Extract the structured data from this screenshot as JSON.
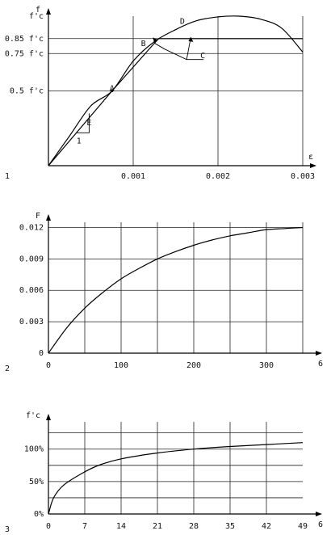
{
  "chart_data": [
    {
      "type": "line",
      "panel_number": "1",
      "ylabel": "f",
      "xlabel": "ε",
      "xlim": [
        0,
        0.003
      ],
      "ylim": [
        0,
        1.0
      ],
      "x_ticks": [
        {
          "value": 0.001,
          "label": "0.001"
        },
        {
          "value": 0.002,
          "label": "0.002"
        },
        {
          "value": 0.003,
          "label": "0.003"
        }
      ],
      "y_ticks": [
        {
          "value": 0.5,
          "label": "0.5  f'c"
        },
        {
          "value": 0.75,
          "label": "0.75  f'c"
        },
        {
          "value": 0.85,
          "label": "0.85  f'c"
        },
        {
          "value": 1.0,
          "label": "f'c"
        }
      ],
      "series": [
        {
          "style": "curve",
          "x": [
            0,
            0.00025,
            0.0005,
            0.00075,
            0.001,
            0.00125,
            0.0015,
            0.00175,
            0.002,
            0.00225,
            0.0025,
            0.00275,
            0.003
          ],
          "y": [
            0,
            0.2,
            0.4,
            0.5,
            0.7,
            0.83,
            0.91,
            0.97,
            0.995,
            1.0,
            0.98,
            0.92,
            0.76
          ]
        },
        {
          "style": "bilinear",
          "x": [
            0,
            0.00075,
            0.00122,
            0.0013,
            0.003
          ],
          "y": [
            0,
            0.5,
            0.8,
            0.85,
            0.85
          ]
        }
      ],
      "annotations": [
        {
          "text": "A",
          "x": 0.00075,
          "y": 0.5
        },
        {
          "text": "B",
          "x": 0.00112,
          "y": 0.8
        },
        {
          "text": "C",
          "x": 0.00182,
          "y": 0.72
        },
        {
          "text": "D",
          "x": 0.00158,
          "y": 0.95
        },
        {
          "text": "E",
          "x": 0.00048,
          "y": 0.27
        },
        {
          "text": "1",
          "x": 0.00036,
          "y": 0.15
        }
      ]
    },
    {
      "type": "line",
      "panel_number": "2",
      "ylabel": "F",
      "xlabel": "6",
      "xlim": [
        0,
        350
      ],
      "ylim": [
        0,
        0.0125
      ],
      "x_ticks": [
        {
          "value": 0,
          "label": "0"
        },
        {
          "value": 100,
          "label": "100"
        },
        {
          "value": 200,
          "label": "200"
        },
        {
          "value": 300,
          "label": "300"
        }
      ],
      "y_ticks": [
        {
          "value": 0,
          "label": "0"
        },
        {
          "value": 0.003,
          "label": "0.003"
        },
        {
          "value": 0.006,
          "label": "0.006"
        },
        {
          "value": 0.009,
          "label": "0.009"
        },
        {
          "value": 0.012,
          "label": "0.012"
        }
      ],
      "series": [
        {
          "x": [
            0,
            25,
            50,
            75,
            100,
            125,
            150,
            175,
            200,
            225,
            250,
            275,
            300,
            325,
            350
          ],
          "y": [
            0,
            0.0024,
            0.0043,
            0.0058,
            0.0071,
            0.0081,
            0.009,
            0.0097,
            0.0103,
            0.0108,
            0.0112,
            0.0115,
            0.0118,
            0.0119,
            0.012
          ]
        }
      ]
    },
    {
      "type": "line",
      "panel_number": "3",
      "ylabel": "f'c",
      "xlabel": "6",
      "xlim": [
        0,
        49
      ],
      "ylim": [
        0,
        1.42
      ],
      "x_ticks": [
        {
          "value": 0,
          "label": "0"
        },
        {
          "value": 7,
          "label": "7"
        },
        {
          "value": 14,
          "label": "14"
        },
        {
          "value": 21,
          "label": "21"
        },
        {
          "value": 28,
          "label": "28"
        },
        {
          "value": 35,
          "label": "35"
        },
        {
          "value": 42,
          "label": "42"
        },
        {
          "value": 49,
          "label": "49"
        }
      ],
      "y_ticks": [
        {
          "value": 0,
          "label": "0%"
        },
        {
          "value": 0.5,
          "label": "50%"
        },
        {
          "value": 1.0,
          "label": "100%"
        }
      ],
      "series": [
        {
          "x": [
            0,
            1,
            3,
            7,
            10,
            14,
            21,
            28,
            35,
            42,
            49
          ],
          "y": [
            0,
            0.25,
            0.45,
            0.65,
            0.76,
            0.85,
            0.94,
            1.0,
            1.04,
            1.07,
            1.1
          ]
        }
      ]
    }
  ]
}
